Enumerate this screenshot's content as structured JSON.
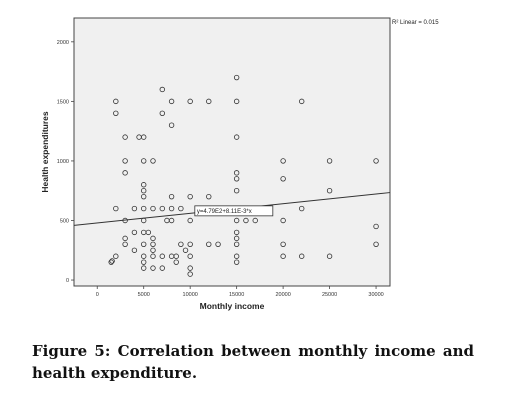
{
  "chart_data": {
    "type": "scatter",
    "xlabel": "Monthly income",
    "ylabel": "Health expenditures",
    "xlim": [
      -2500,
      31500
    ],
    "ylim": [
      -50,
      2200
    ],
    "xticks": [
      "0",
      "5000",
      "10000",
      "15000",
      "20000",
      "25000",
      "30000"
    ],
    "xtick_values": [
      0,
      5000,
      10000,
      15000,
      20000,
      25000,
      30000
    ],
    "yticks": [
      "0",
      "500",
      "1000",
      "1500",
      "2000"
    ],
    "ytick_values": [
      0,
      500,
      1000,
      1500,
      2000
    ],
    "grid": false,
    "legend": "R² Linear = 0.015",
    "fit_equation": "y=4.79E2+8.11E-3*x",
    "fit_line": {
      "intercept": 479,
      "slope": 0.00811
    },
    "colors": {
      "plot_bg": "#f0f0f0",
      "frame": "#444444",
      "point": "#333333",
      "fit": "#333333"
    },
    "points": [
      {
        "x": 1500,
        "y": 150
      },
      {
        "x": 1600,
        "y": 160
      },
      {
        "x": 2000,
        "y": 200
      },
      {
        "x": 2000,
        "y": 1400
      },
      {
        "x": 2000,
        "y": 1500
      },
      {
        "x": 2000,
        "y": 600
      },
      {
        "x": 3000,
        "y": 1200
      },
      {
        "x": 3000,
        "y": 1000
      },
      {
        "x": 3000,
        "y": 900
      },
      {
        "x": 3000,
        "y": 500
      },
      {
        "x": 3000,
        "y": 350
      },
      {
        "x": 3000,
        "y": 300
      },
      {
        "x": 4000,
        "y": 600
      },
      {
        "x": 4000,
        "y": 400
      },
      {
        "x": 4000,
        "y": 250
      },
      {
        "x": 4500,
        "y": 1200
      },
      {
        "x": 5000,
        "y": 1200
      },
      {
        "x": 5000,
        "y": 1000
      },
      {
        "x": 5000,
        "y": 800
      },
      {
        "x": 5000,
        "y": 750
      },
      {
        "x": 5000,
        "y": 700
      },
      {
        "x": 5000,
        "y": 600
      },
      {
        "x": 5000,
        "y": 500
      },
      {
        "x": 5000,
        "y": 400
      },
      {
        "x": 5000,
        "y": 300
      },
      {
        "x": 5000,
        "y": 200
      },
      {
        "x": 5000,
        "y": 150
      },
      {
        "x": 5000,
        "y": 100
      },
      {
        "x": 5500,
        "y": 400
      },
      {
        "x": 6000,
        "y": 1000
      },
      {
        "x": 6000,
        "y": 600
      },
      {
        "x": 6000,
        "y": 350
      },
      {
        "x": 6000,
        "y": 300
      },
      {
        "x": 6000,
        "y": 250
      },
      {
        "x": 6000,
        "y": 200
      },
      {
        "x": 6000,
        "y": 100
      },
      {
        "x": 7000,
        "y": 1600
      },
      {
        "x": 7000,
        "y": 1400
      },
      {
        "x": 7000,
        "y": 600
      },
      {
        "x": 7000,
        "y": 200
      },
      {
        "x": 7000,
        "y": 100
      },
      {
        "x": 7500,
        "y": 500
      },
      {
        "x": 8000,
        "y": 1500
      },
      {
        "x": 8000,
        "y": 1300
      },
      {
        "x": 8000,
        "y": 700
      },
      {
        "x": 8000,
        "y": 600
      },
      {
        "x": 8000,
        "y": 500
      },
      {
        "x": 8000,
        "y": 200
      },
      {
        "x": 8500,
        "y": 200
      },
      {
        "x": 8500,
        "y": 150
      },
      {
        "x": 9000,
        "y": 600
      },
      {
        "x": 9000,
        "y": 300
      },
      {
        "x": 9500,
        "y": 250
      },
      {
        "x": 10000,
        "y": 1500
      },
      {
        "x": 10000,
        "y": 700
      },
      {
        "x": 10000,
        "y": 500
      },
      {
        "x": 10000,
        "y": 300
      },
      {
        "x": 10000,
        "y": 200
      },
      {
        "x": 10000,
        "y": 100
      },
      {
        "x": 10000,
        "y": 50
      },
      {
        "x": 12000,
        "y": 1500
      },
      {
        "x": 12000,
        "y": 700
      },
      {
        "x": 12000,
        "y": 300
      },
      {
        "x": 13000,
        "y": 300
      },
      {
        "x": 15000,
        "y": 1700
      },
      {
        "x": 15000,
        "y": 1500
      },
      {
        "x": 15000,
        "y": 1200
      },
      {
        "x": 15000,
        "y": 900
      },
      {
        "x": 15000,
        "y": 850
      },
      {
        "x": 15000,
        "y": 750
      },
      {
        "x": 15000,
        "y": 600
      },
      {
        "x": 15000,
        "y": 500
      },
      {
        "x": 15000,
        "y": 400
      },
      {
        "x": 15000,
        "y": 350
      },
      {
        "x": 15000,
        "y": 300
      },
      {
        "x": 15000,
        "y": 200
      },
      {
        "x": 15000,
        "y": 150
      },
      {
        "x": 16000,
        "y": 500
      },
      {
        "x": 17000,
        "y": 500
      },
      {
        "x": 20000,
        "y": 1000
      },
      {
        "x": 20000,
        "y": 850
      },
      {
        "x": 20000,
        "y": 500
      },
      {
        "x": 20000,
        "y": 300
      },
      {
        "x": 20000,
        "y": 200
      },
      {
        "x": 22000,
        "y": 1500
      },
      {
        "x": 22000,
        "y": 600
      },
      {
        "x": 22000,
        "y": 200
      },
      {
        "x": 25000,
        "y": 1000
      },
      {
        "x": 25000,
        "y": 750
      },
      {
        "x": 25000,
        "y": 200
      },
      {
        "x": 30000,
        "y": 1000
      },
      {
        "x": 30000,
        "y": 450
      },
      {
        "x": 30000,
        "y": 300
      }
    ]
  },
  "caption": "Figure 5: Correlation between monthly income and health expenditure."
}
